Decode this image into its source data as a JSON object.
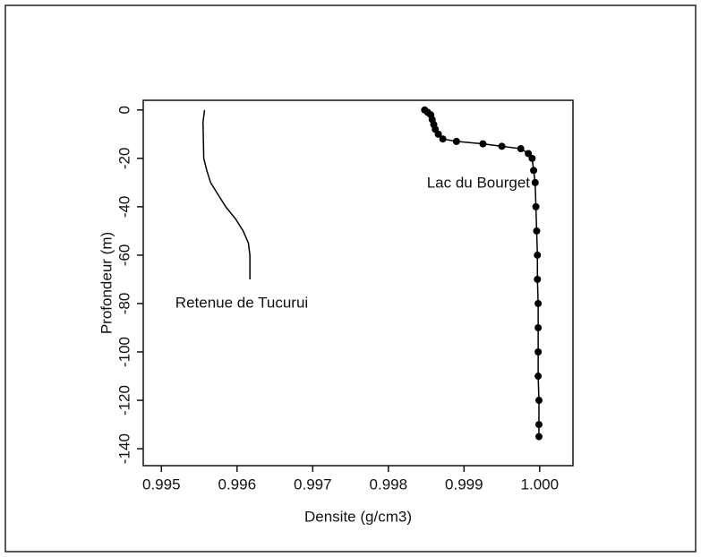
{
  "chart_data": {
    "type": "line",
    "xlabel": "Densite (g/cm3)",
    "ylabel": "Profondeur (m)",
    "xlim": [
      0.99476,
      1.00044
    ],
    "ylim": [
      -147,
      4
    ],
    "xticks": [
      0.995,
      0.996,
      0.997,
      0.998,
      0.999,
      {
        "value": 1,
        "label": "1.000"
      }
    ],
    "yticks": [
      0,
      -20,
      -40,
      -60,
      -80,
      -100,
      -120,
      -140
    ],
    "annotations": [
      "Lac du Bourget",
      "Retenue de Tucurui"
    ],
    "series": [
      {
        "name": "Retenue de Tucurui",
        "color": "#000000",
        "marker": false,
        "x": [
          0.99557,
          0.99555,
          0.99556,
          0.9956,
          0.99565,
          0.99575,
          0.99585,
          0.99598,
          0.99608,
          0.99615,
          0.99617,
          0.99617
        ],
        "values": [
          0,
          -5,
          -20,
          -25,
          -30,
          -35,
          -40,
          -45,
          -50,
          -55,
          -60,
          -70
        ]
      },
      {
        "name": "Lac du Bourget",
        "color": "#000000",
        "marker": true,
        "x": [
          0.99848,
          0.99852,
          0.99856,
          0.99858,
          0.9986,
          0.99862,
          0.99866,
          0.99872,
          0.9989,
          0.99925,
          0.9995,
          0.99975,
          0.99985,
          0.9999,
          0.99992,
          0.99994,
          0.99995,
          0.99996,
          0.99997,
          0.99997,
          0.99998,
          0.99998,
          0.99998,
          0.99998,
          0.99999,
          0.99999,
          0.99999
        ],
        "values": [
          0,
          -1,
          -2,
          -4,
          -6,
          -8,
          -10,
          -12,
          -13,
          -14,
          -15,
          -16,
          -18,
          -20,
          -25,
          -30,
          -40,
          -50,
          -60,
          -70,
          -80,
          -90,
          -100,
          -110,
          -120,
          -130,
          -135
        ]
      }
    ]
  }
}
